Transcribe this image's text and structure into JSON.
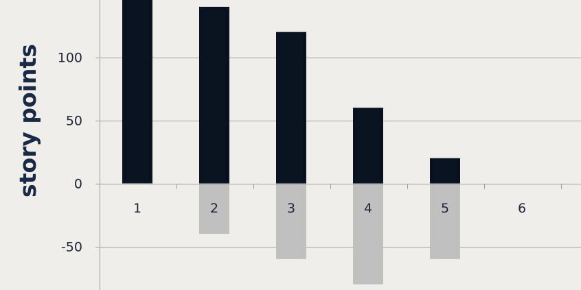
{
  "chart_data": {
    "type": "bar",
    "categories": [
      "1",
      "2",
      "3",
      "4",
      "5",
      "6"
    ],
    "series": [
      {
        "values": [
          150,
          140,
          120,
          60,
          20,
          0
        ],
        "color": "#0a1420"
      },
      {
        "values": [
          0,
          -40,
          -60,
          -80,
          -60,
          0
        ],
        "color": "#c0c0c0"
      }
    ],
    "stacked": true,
    "ylabel": "story points",
    "xlabel": "",
    "yticks": [
      100,
      50,
      0,
      -50
    ],
    "ylim": [
      -85,
      145
    ],
    "grid": true,
    "colors": {
      "gridline": "#a0a0a0",
      "axis": "#9a9a9a",
      "background": "#efeeeb"
    }
  }
}
